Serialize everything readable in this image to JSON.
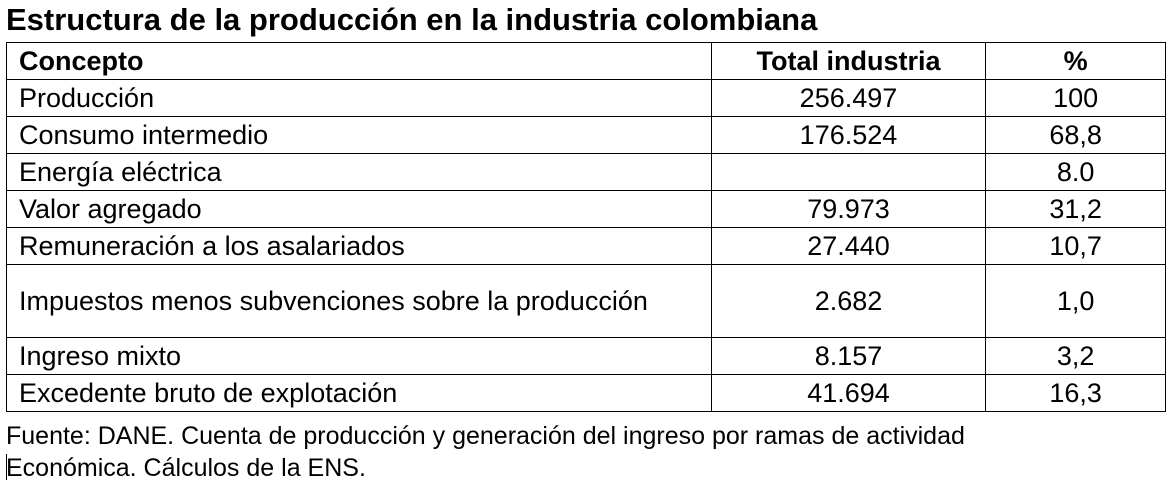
{
  "title": "Estructura de la producción en la industria colombiana",
  "table": {
    "headers": {
      "concept": "Concepto",
      "total": "Total industria",
      "pct": "%"
    },
    "rows": [
      {
        "concept": "Producción",
        "total": "256.497",
        "pct": "100"
      },
      {
        "concept": "Consumo intermedio",
        "total": "176.524",
        "pct": "68,8"
      },
      {
        "concept": "Energía eléctrica",
        "total": "",
        "pct": "8.0"
      },
      {
        "concept": "Valor agregado",
        "total": "79.973",
        "pct": "31,2"
      },
      {
        "concept": "Remuneración a los asalariados",
        "total": "27.440",
        "pct": "10,7"
      },
      {
        "concept": "Impuestos menos subvenciones sobre la producción",
        "total": "2.682",
        "pct": "1,0"
      },
      {
        "concept": "Ingreso mixto",
        "total": "8.157",
        "pct": "3,2"
      },
      {
        "concept": "Excedente bruto de explotación",
        "total": "41.694",
        "pct": "16,3"
      }
    ]
  },
  "source": {
    "line1": "Fuente: DANE. Cuenta de producción y generación del ingreso por ramas de actividad",
    "line2": "Económica. Cálculos de la ENS."
  }
}
